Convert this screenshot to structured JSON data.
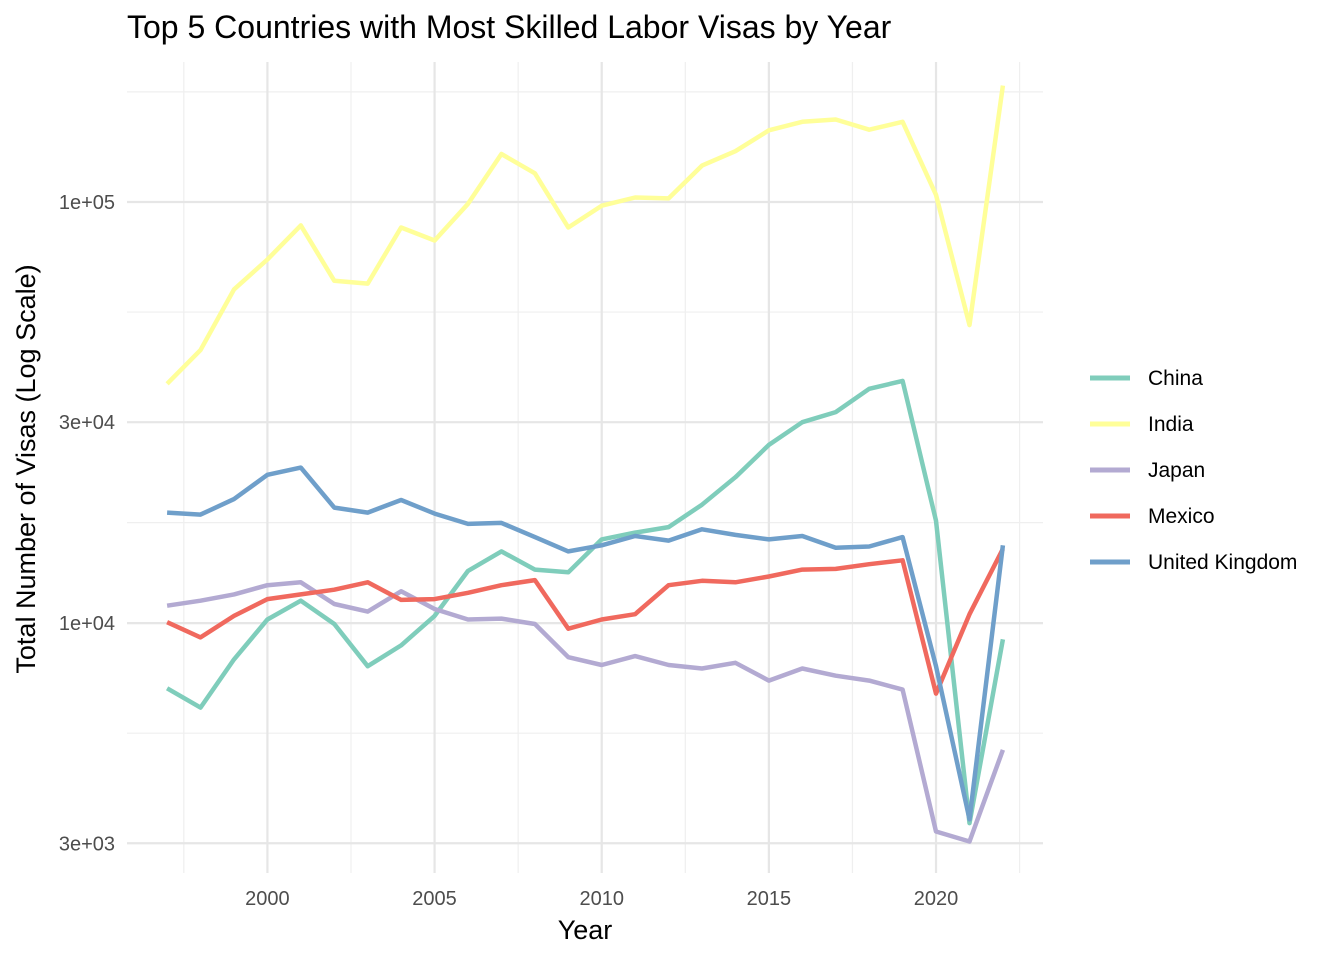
{
  "chart_data": {
    "type": "line",
    "title": "Top 5 Countries with Most Skilled Labor Visas by Year",
    "xlabel": "Year",
    "ylabel": "Total Number of Visas (Log Scale)",
    "y_scale": "log10",
    "xlim": [
      1995.8,
      2023.2
    ],
    "ylim": [
      2550,
      215000
    ],
    "x_ticks": [
      2000,
      2005,
      2010,
      2015,
      2020
    ],
    "x_tick_labels": [
      "2000",
      "2005",
      "2010",
      "2015",
      "2020"
    ],
    "y_ticks": [
      3000,
      10000,
      30000,
      100000
    ],
    "y_tick_labels": [
      "3e+03",
      "1e+04",
      "3e+04",
      "1e+05"
    ],
    "grid": true,
    "legend_position": "right",
    "x": [
      1997,
      1998,
      1999,
      2000,
      2001,
      2002,
      2003,
      2004,
      2005,
      2006,
      2007,
      2008,
      2009,
      2010,
      2011,
      2012,
      2013,
      2014,
      2015,
      2016,
      2017,
      2018,
      2019,
      2020,
      2021,
      2022
    ],
    "series": [
      {
        "name": "China",
        "color": "#7fcdbb",
        "values": [
          7000,
          6300,
          8200,
          10200,
          11300,
          9950,
          7900,
          8850,
          10400,
          13300,
          14800,
          13400,
          13200,
          15800,
          16400,
          16900,
          19100,
          22200,
          26500,
          30000,
          31700,
          36000,
          37600,
          17500,
          3350,
          9150
        ]
      },
      {
        "name": "India",
        "color": "#ffff99",
        "values": [
          37000,
          44500,
          62000,
          73000,
          88000,
          65000,
          64000,
          87000,
          81000,
          99000,
          130000,
          117000,
          87000,
          98000,
          102500,
          102000,
          122000,
          132000,
          148000,
          155000,
          157000,
          148500,
          155000,
          104000,
          51000,
          189000
        ]
      },
      {
        "name": "Japan",
        "color": "#b3aad2",
        "values": [
          11000,
          11300,
          11700,
          12300,
          12500,
          11100,
          10650,
          11900,
          10800,
          10200,
          10250,
          9950,
          8300,
          7950,
          8350,
          7950,
          7800,
          8050,
          7300,
          7800,
          7500,
          7300,
          6950,
          3200,
          3030,
          5000
        ]
      },
      {
        "name": "Mexico",
        "color": "#f0695e",
        "values": [
          10050,
          9250,
          10400,
          11400,
          11700,
          12000,
          12500,
          11350,
          11400,
          11800,
          12300,
          12650,
          9700,
          10200,
          10500,
          12300,
          12600,
          12500,
          12900,
          13400,
          13450,
          13800,
          14100,
          6800,
          10500,
          15000
        ]
      },
      {
        "name": "United Kingdom",
        "color": "#6f9fca",
        "values": [
          18300,
          18100,
          19700,
          22500,
          23400,
          18800,
          18300,
          19600,
          18200,
          17200,
          17300,
          16000,
          14800,
          15300,
          16100,
          15700,
          16700,
          16200,
          15800,
          16100,
          15100,
          15200,
          16000,
          7900,
          3420,
          15300
        ]
      }
    ]
  }
}
